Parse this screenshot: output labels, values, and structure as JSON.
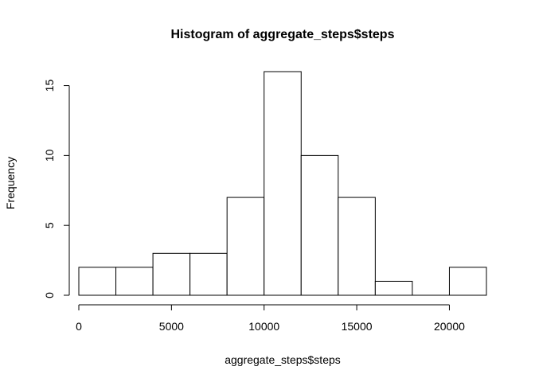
{
  "chart_data": {
    "type": "bar",
    "title": "Histogram of aggregate_steps$steps",
    "xlabel": "aggregate_steps$steps",
    "ylabel": "Frequency",
    "bins": [
      {
        "from": 0,
        "to": 2000,
        "count": 2
      },
      {
        "from": 2000,
        "to": 4000,
        "count": 2
      },
      {
        "from": 4000,
        "to": 6000,
        "count": 3
      },
      {
        "from": 6000,
        "to": 8000,
        "count": 3
      },
      {
        "from": 8000,
        "to": 10000,
        "count": 7
      },
      {
        "from": 10000,
        "to": 12000,
        "count": 16
      },
      {
        "from": 12000,
        "to": 14000,
        "count": 10
      },
      {
        "from": 14000,
        "to": 16000,
        "count": 7
      },
      {
        "from": 16000,
        "to": 18000,
        "count": 1
      },
      {
        "from": 18000,
        "to": 20000,
        "count": 0
      },
      {
        "from": 20000,
        "to": 22000,
        "count": 2
      }
    ],
    "xlim": [
      0,
      22000
    ],
    "ylim": [
      0,
      16
    ],
    "x_ticks": [
      0,
      5000,
      10000,
      15000,
      20000
    ],
    "x_tick_labels": [
      "0",
      "5000",
      "10000",
      "15000",
      "20000"
    ],
    "y_ticks": [
      0,
      5,
      10,
      15
    ],
    "y_tick_labels": [
      "0",
      "5",
      "10",
      "15"
    ],
    "grid": false,
    "colors": {
      "bar_fill": "#ffffff",
      "bar_stroke": "#000000"
    }
  }
}
